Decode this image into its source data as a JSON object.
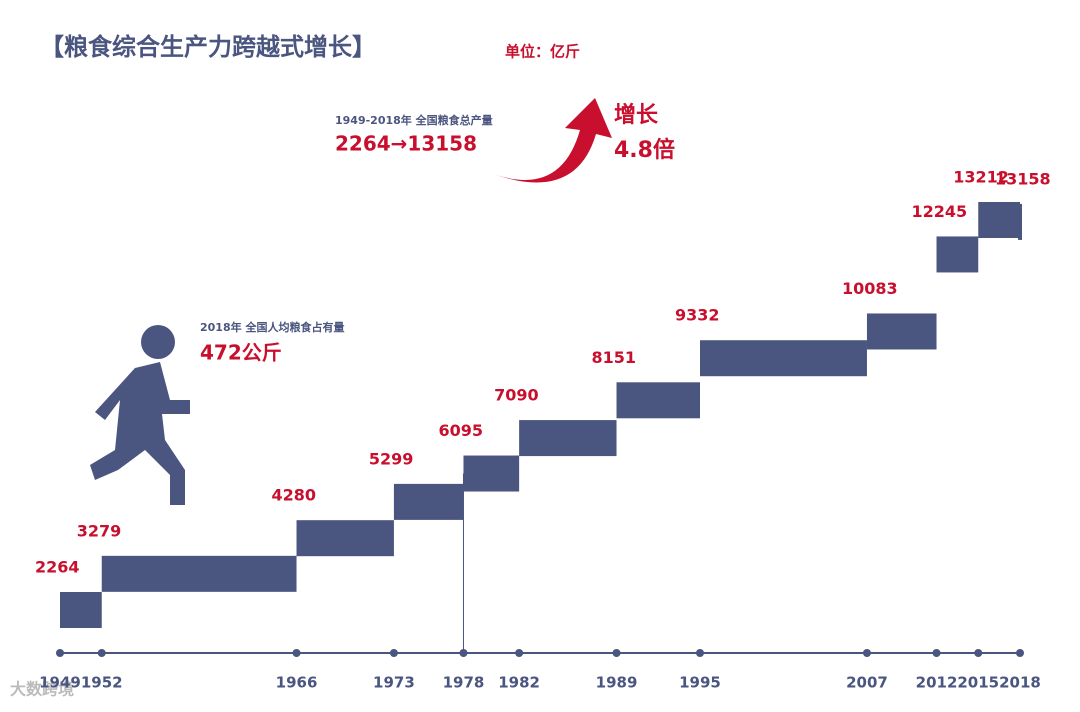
{
  "chart_data": {
    "type": "step",
    "title": "【粮食综合生产力跨越式增长】",
    "unit": "单位：亿斤",
    "annotations": {
      "total_caption": "1949-2018年  全国粮食总产量",
      "total_change": "2264→13158",
      "growth_word": "增长",
      "growth_ratio": "4.8倍",
      "per_capita_caption": "2018年  全国人均粮食占有量",
      "per_capita_value": "472公斤"
    },
    "x": [
      1949,
      1952,
      1966,
      1973,
      1978,
      1982,
      1989,
      1995,
      2007,
      2012,
      2015,
      2018
    ],
    "values": [
      2264,
      3279,
      4280,
      5299,
      6095,
      7090,
      8151,
      9332,
      10083,
      12245,
      13212,
      13158
    ],
    "color": "#4a5580",
    "label_color": "#c8102e",
    "watermark": "大数跨境"
  }
}
